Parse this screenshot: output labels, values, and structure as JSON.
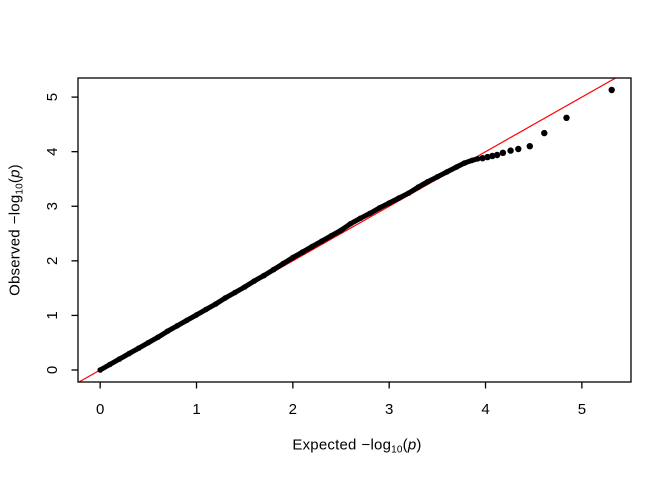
{
  "figure": {
    "background": "#ffffff",
    "axis_color": "#000000",
    "tick_label_color": "#000000"
  },
  "chart_data": {
    "type": "scatter",
    "title": "",
    "xlabel": "Expected −log10(p)",
    "ylabel": "Observed −log10(p)",
    "xlabel_parts": {
      "prefix": "Expected",
      "minuslog": "−log",
      "sub": "10",
      "open_paren": "(",
      "p": "p",
      "close_paren": ")"
    },
    "ylabel_parts": {
      "prefix": "Observed",
      "minuslog": "−log",
      "sub": "10",
      "open_paren": "(",
      "p": "p",
      "close_paren": ")"
    },
    "xticks": [
      0,
      1,
      2,
      3,
      4,
      5
    ],
    "yticks": [
      0,
      1,
      2,
      3,
      4,
      5
    ],
    "xlim": [
      -0.23,
      5.51
    ],
    "ylim": [
      -0.22,
      5.35
    ],
    "grid": false,
    "legend": false,
    "reference_line": {
      "intercept": 0,
      "slope": 1,
      "color": "#ff0000"
    },
    "point_color": "#000000",
    "band_points": [
      [
        0.0,
        0.0
      ],
      [
        0.1,
        0.1
      ],
      [
        0.2,
        0.2
      ],
      [
        0.3,
        0.3
      ],
      [
        0.4,
        0.4
      ],
      [
        0.5,
        0.5
      ],
      [
        0.6,
        0.6
      ],
      [
        0.7,
        0.71
      ],
      [
        0.8,
        0.81
      ],
      [
        0.9,
        0.91
      ],
      [
        1.0,
        1.01
      ],
      [
        1.1,
        1.11
      ],
      [
        1.2,
        1.21
      ],
      [
        1.3,
        1.32
      ],
      [
        1.4,
        1.42
      ],
      [
        1.5,
        1.52
      ],
      [
        1.6,
        1.63
      ],
      [
        1.7,
        1.73
      ],
      [
        1.8,
        1.84
      ],
      [
        1.9,
        1.95
      ],
      [
        2.0,
        2.06
      ],
      [
        2.1,
        2.16
      ],
      [
        2.2,
        2.26
      ],
      [
        2.3,
        2.36
      ],
      [
        2.4,
        2.46
      ],
      [
        2.5,
        2.56
      ],
      [
        2.6,
        2.68
      ],
      [
        2.7,
        2.78
      ],
      [
        2.8,
        2.87
      ],
      [
        2.9,
        2.97
      ],
      [
        3.0,
        3.06
      ],
      [
        3.1,
        3.15
      ],
      [
        3.2,
        3.24
      ],
      [
        3.3,
        3.35
      ],
      [
        3.4,
        3.45
      ],
      [
        3.5,
        3.54
      ],
      [
        3.6,
        3.63
      ],
      [
        3.7,
        3.72
      ],
      [
        3.78,
        3.79
      ],
      [
        3.86,
        3.84
      ],
      [
        3.92,
        3.87
      ]
    ],
    "outlier_points": [
      [
        3.97,
        3.88
      ],
      [
        4.02,
        3.9
      ],
      [
        4.07,
        3.92
      ],
      [
        4.12,
        3.94
      ],
      [
        4.18,
        3.98
      ],
      [
        4.26,
        4.02
      ],
      [
        4.34,
        4.05
      ],
      [
        4.46,
        4.1
      ],
      [
        4.61,
        4.34
      ],
      [
        4.84,
        4.62
      ],
      [
        5.31,
        5.13
      ]
    ]
  }
}
